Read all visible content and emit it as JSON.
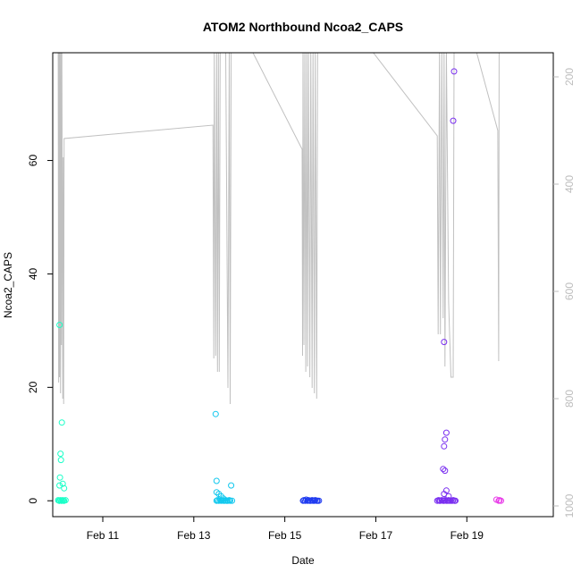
{
  "chart_data": {
    "type": "scatter",
    "title": "ATOM2 Northbound Ncoa2_CAPS",
    "xlabel": "Date",
    "ylabel": "Ncoa2_CAPS",
    "x_tick_labels": [
      "Feb 11",
      "Feb 13",
      "Feb 15",
      "Feb 17",
      "Feb 19"
    ],
    "x_tick_days": [
      11,
      13,
      15,
      17,
      19
    ],
    "y_ticks": [
      0,
      20,
      40,
      60
    ],
    "y_range": [
      -2.8,
      79
    ],
    "x_range": [
      9.9,
      20.9
    ],
    "right_axis": {
      "ticks": [
        200,
        400,
        600,
        800,
        1000
      ],
      "range_top": 155,
      "range_bottom": 1020,
      "reversed": true,
      "color": "#bdbdbd"
    },
    "points_color_note": "colored by time, teal to violet",
    "series": [
      {
        "color": "#1affc8",
        "points": [
          [
            10.05,
            31
          ],
          [
            10.07,
            8.3
          ],
          [
            10.08,
            7.2
          ],
          [
            10.1,
            13.8
          ],
          [
            10.06,
            4.1
          ],
          [
            10.12,
            3.0
          ],
          [
            10.15,
            2.2
          ],
          [
            10.05,
            2.7
          ],
          [
            10.02,
            0.1
          ],
          [
            10.05,
            0
          ],
          [
            10.07,
            0.1
          ],
          [
            10.1,
            0
          ],
          [
            10.12,
            0.1
          ],
          [
            10.15,
            0
          ],
          [
            10.18,
            0.1
          ],
          [
            10.04,
            0
          ],
          [
            10.09,
            0
          ],
          [
            10.14,
            0
          ]
        ]
      },
      {
        "color": "#12c8ee",
        "points": [
          [
            13.48,
            15.3
          ],
          [
            13.5,
            3.5
          ],
          [
            13.5,
            1.5
          ],
          [
            13.55,
            1.2
          ],
          [
            13.6,
            0.8
          ],
          [
            13.65,
            0.4
          ],
          [
            13.82,
            2.7
          ],
          [
            13.5,
            0
          ],
          [
            13.52,
            0.1
          ],
          [
            13.55,
            0
          ],
          [
            13.58,
            0.1
          ],
          [
            13.6,
            0
          ],
          [
            13.62,
            0.1
          ],
          [
            13.65,
            0
          ],
          [
            13.68,
            0
          ],
          [
            13.7,
            0.1
          ],
          [
            13.72,
            0
          ],
          [
            13.75,
            0
          ],
          [
            13.78,
            0.1
          ],
          [
            13.8,
            0
          ],
          [
            13.84,
            0
          ]
        ]
      },
      {
        "color": "#1f3bf0",
        "points": [
          [
            15.4,
            0
          ],
          [
            15.42,
            0.1
          ],
          [
            15.45,
            0
          ],
          [
            15.47,
            0.2
          ],
          [
            15.5,
            0
          ],
          [
            15.52,
            0.1
          ],
          [
            15.55,
            0
          ],
          [
            15.57,
            0
          ],
          [
            15.6,
            0.1
          ],
          [
            15.62,
            0
          ],
          [
            15.65,
            0
          ],
          [
            15.67,
            0.1
          ],
          [
            15.7,
            0
          ],
          [
            15.72,
            0
          ],
          [
            15.75,
            0
          ]
        ]
      },
      {
        "color": "#7a2ff0",
        "points": [
          [
            18.5,
            28
          ],
          [
            18.55,
            12
          ],
          [
            18.52,
            10.8
          ],
          [
            18.5,
            9.6
          ],
          [
            18.48,
            5.6
          ],
          [
            18.52,
            5.3
          ],
          [
            18.55,
            1.8
          ],
          [
            18.5,
            1.2
          ],
          [
            18.6,
            0.8
          ],
          [
            18.72,
            75.7
          ],
          [
            18.7,
            67
          ],
          [
            18.35,
            0
          ],
          [
            18.38,
            0.1
          ],
          [
            18.4,
            0
          ],
          [
            18.42,
            0
          ],
          [
            18.45,
            0.1
          ],
          [
            18.48,
            0
          ],
          [
            18.5,
            0
          ],
          [
            18.52,
            0.1
          ],
          [
            18.55,
            0
          ],
          [
            18.58,
            0
          ],
          [
            18.6,
            0.1
          ],
          [
            18.62,
            0
          ],
          [
            18.65,
            0
          ],
          [
            18.68,
            0
          ],
          [
            18.7,
            0.1
          ],
          [
            18.73,
            0
          ],
          [
            18.75,
            0
          ]
        ]
      },
      {
        "color": "#e838e8",
        "points": [
          [
            19.65,
            0.2
          ],
          [
            19.7,
            0
          ],
          [
            19.72,
            0.1
          ],
          [
            19.75,
            0
          ]
        ]
      }
    ],
    "depth_line": {
      "color": "#c0c0c0",
      "points": [
        [
          10.02,
          150
        ],
        [
          10.03,
          770
        ],
        [
          10.04,
          150
        ],
        [
          10.05,
          760
        ],
        [
          10.06,
          150
        ],
        [
          10.07,
          790
        ],
        [
          10.08,
          150
        ],
        [
          10.09,
          700
        ],
        [
          10.1,
          150
        ],
        [
          10.12,
          800
        ],
        [
          10.13,
          350
        ],
        [
          10.14,
          810
        ],
        [
          10.15,
          315
        ],
        [
          13.42,
          290
        ],
        [
          13.44,
          725
        ],
        [
          13.45,
          150
        ],
        [
          13.48,
          720
        ],
        [
          13.5,
          150
        ],
        [
          13.52,
          750
        ],
        [
          13.54,
          150
        ],
        [
          13.56,
          750
        ],
        [
          13.58,
          150
        ],
        [
          13.7,
          150
        ],
        [
          13.75,
          780
        ],
        [
          13.78,
          150
        ],
        [
          13.8,
          810
        ],
        [
          13.82,
          150
        ],
        [
          14.3,
          155
        ],
        [
          15.38,
          335
        ],
        [
          15.39,
          720
        ],
        [
          15.4,
          150
        ],
        [
          15.42,
          700
        ],
        [
          15.44,
          150
        ],
        [
          15.46,
          750
        ],
        [
          15.48,
          150
        ],
        [
          15.5,
          740
        ],
        [
          15.52,
          150
        ],
        [
          15.55,
          760
        ],
        [
          15.57,
          150
        ],
        [
          15.6,
          780
        ],
        [
          15.62,
          150
        ],
        [
          15.65,
          790
        ],
        [
          15.67,
          150
        ],
        [
          15.7,
          800
        ],
        [
          15.72,
          150
        ],
        [
          16.9,
          150
        ],
        [
          18.35,
          310
        ],
        [
          18.37,
          680
        ],
        [
          18.4,
          150
        ],
        [
          18.42,
          680
        ],
        [
          18.45,
          150
        ],
        [
          18.48,
          650
        ],
        [
          18.5,
          150
        ],
        [
          18.52,
          740
        ],
        [
          18.55,
          150
        ],
        [
          18.6,
          620
        ],
        [
          18.65,
          760
        ],
        [
          18.7,
          760
        ],
        [
          18.72,
          150
        ],
        [
          18.75,
          150
        ],
        [
          19.2,
          150
        ],
        [
          19.68,
          300
        ],
        [
          19.7,
          730
        ],
        [
          19.71,
          150
        ]
      ]
    }
  }
}
